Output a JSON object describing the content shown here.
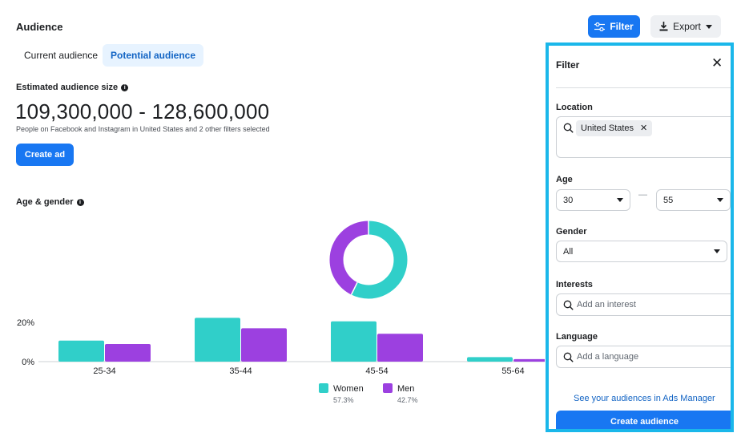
{
  "page": {
    "title": "Audience"
  },
  "tabs": [
    {
      "label": "Current audience",
      "active": false
    },
    {
      "label": "Potential audience",
      "active": true
    }
  ],
  "toolbar": {
    "filter_label": "Filter",
    "export_label": "Export"
  },
  "estimate": {
    "title": "Estimated audience size",
    "value": "109,300,000 - 128,600,000",
    "subtitle": "People on Facebook and Instagram in United States and 2 other filters selected",
    "create_ad_label": "Create ad"
  },
  "age_gender": {
    "title": "Age & gender"
  },
  "colors": {
    "women": "#30cfc9",
    "men": "#9c40e0",
    "accent": "#1877f2",
    "highlight_border": "#1ab7ea"
  },
  "chart_data": {
    "type": "bar",
    "categories": [
      "25-34",
      "35-44",
      "45-54",
      "55-64"
    ],
    "series": [
      {
        "name": "Women",
        "values": [
          10.7,
          22.3,
          20.5,
          2.3
        ]
      },
      {
        "name": "Men",
        "values": [
          9.0,
          17.0,
          14.2,
          1.3
        ]
      }
    ],
    "ytick_labels": [
      "20%",
      "0%"
    ],
    "ylim": [
      0,
      26
    ],
    "legend_position": "bottom",
    "donut": [
      {
        "name": "Women",
        "value": 57.3
      },
      {
        "name": "Men",
        "value": 42.7
      }
    ],
    "legend": [
      {
        "name": "Women",
        "percent_label": "57.3%"
      },
      {
        "name": "Men",
        "percent_label": "42.7%"
      }
    ]
  },
  "filter_panel": {
    "title": "Filter",
    "location": {
      "label": "Location",
      "chip": "United States"
    },
    "age": {
      "label": "Age",
      "min": "30",
      "max": "55",
      "separator": "—"
    },
    "gender": {
      "label": "Gender",
      "value": "All"
    },
    "interests": {
      "label": "Interests",
      "placeholder": "Add an interest"
    },
    "language": {
      "label": "Language",
      "placeholder": "Add a language"
    },
    "ads_manager_link": "See your audiences in Ads Manager",
    "create_audience_label": "Create audience"
  }
}
